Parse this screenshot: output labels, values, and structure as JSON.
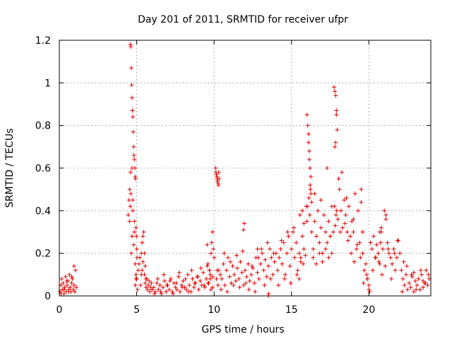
{
  "chart_data": {
    "type": "scatter",
    "title": "Day 201 of 2011, SRMTID for receiver ufpr",
    "xlabel": "GPS time / hours",
    "ylabel": "SRMTID / TECUs",
    "xlim": [
      0,
      24
    ],
    "ylim": [
      0,
      1.2
    ],
    "xticks": [
      0,
      5,
      10,
      15,
      20
    ],
    "xtick_labels": [
      "0",
      "5",
      "10",
      "15",
      "20"
    ],
    "yticks": [
      0,
      0.2,
      0.4,
      0.6,
      0.8,
      1,
      1.2
    ],
    "ytick_labels": [
      "0",
      "0.2",
      "0.4",
      "0.6",
      "0.8",
      "1",
      "1.2"
    ],
    "grid": true,
    "marker": "+",
    "series": [
      {
        "name": "ufpr",
        "color": "#e00000",
        "x": [
          0.05,
          0.1,
          0.15,
          0.2,
          0.25,
          0.3,
          0.35,
          0.4,
          0.45,
          0.5,
          0.55,
          0.6,
          0.65,
          0.7,
          0.75,
          0.8,
          0.85,
          0.9,
          0.95,
          1.0,
          1.05,
          1.1,
          0.12,
          0.3,
          0.48,
          0.62,
          0.8,
          0.95,
          4.45,
          4.5,
          4.55,
          4.6,
          4.65,
          4.7,
          4.75,
          4.8,
          4.85,
          4.9,
          4.95,
          5.0,
          5.05,
          5.1,
          5.15,
          5.2,
          5.25,
          5.3,
          5.35,
          5.4,
          5.45,
          5.5,
          5.55,
          5.6,
          5.65,
          5.7,
          5.75,
          5.8,
          5.85,
          5.9,
          5.95,
          6.0,
          4.6,
          4.62,
          4.65,
          4.68,
          4.7,
          4.72,
          4.75,
          4.78,
          4.8,
          4.82,
          4.85,
          4.88,
          4.9,
          4.92,
          4.95,
          4.98,
          5.0,
          5.02,
          4.55,
          4.58,
          4.62,
          4.7,
          4.75,
          4.85,
          4.9,
          4.95,
          5.3,
          5.35,
          5.4,
          5.5,
          5.55,
          5.6,
          6.1,
          6.2,
          6.3,
          6.4,
          6.5,
          6.6,
          6.7,
          6.8,
          6.9,
          7.0,
          7.1,
          7.2,
          7.3,
          7.4,
          7.5,
          7.6,
          7.7,
          7.8,
          7.9,
          8.0,
          8.1,
          8.2,
          8.3,
          8.4,
          8.5,
          8.6,
          8.7,
          8.8,
          8.9,
          9.0,
          9.1,
          9.2,
          9.3,
          9.4,
          9.5,
          9.6,
          9.7,
          9.8,
          9.9,
          6.15,
          6.35,
          6.55,
          6.75,
          6.95,
          7.15,
          7.35,
          7.55,
          7.75,
          7.95,
          8.15,
          8.35,
          8.55,
          8.75,
          8.95,
          9.15,
          9.35,
          9.55,
          9.75,
          9.6,
          9.7,
          9.8,
          9.85,
          9.9,
          9.95,
          10.0,
          9.65,
          9.75,
          9.9,
          9.55,
          10.1,
          10.12,
          10.15,
          10.18,
          10.2,
          10.22,
          10.25,
          10.28,
          10.3,
          10.32,
          10.15,
          10.2,
          10.25,
          10.4,
          10.5,
          10.6,
          10.7,
          10.8,
          10.9,
          11.0,
          11.1,
          11.2,
          11.3,
          11.4,
          11.5,
          11.6,
          11.7,
          11.8,
          11.9,
          12.0,
          12.1,
          12.2,
          12.3,
          12.4,
          12.5,
          12.6,
          12.7,
          12.8,
          12.9,
          13.0,
          13.1,
          13.2,
          13.3,
          13.4,
          13.5,
          13.6,
          13.7,
          13.8,
          13.9,
          14.0,
          10.45,
          10.65,
          10.85,
          11.05,
          11.25,
          11.45,
          11.65,
          11.85,
          12.05,
          12.25,
          12.45,
          12.65,
          12.85,
          13.05,
          13.25,
          13.45,
          13.65,
          13.85,
          10.3,
          11.9,
          11.95,
          12.8,
          13.5,
          13.52,
          14.1,
          14.2,
          14.3,
          14.4,
          14.5,
          14.6,
          14.7,
          14.8,
          14.9,
          15.0,
          15.1,
          15.2,
          15.3,
          15.4,
          15.5,
          15.6,
          15.7,
          15.8,
          15.9,
          16.0,
          14.15,
          14.35,
          14.55,
          14.75,
          14.95,
          15.15,
          15.35,
          15.55,
          15.75,
          15.95,
          15.5,
          15.6,
          15.7,
          15.8,
          16.0,
          16.05,
          16.1,
          16.15,
          16.2,
          16.25,
          16.1,
          16.15,
          16.2,
          16.25,
          16.05,
          16.12,
          16.18,
          16.22,
          16.3,
          16.3,
          16.4,
          16.5,
          16.6,
          16.7,
          16.8,
          16.9,
          17.0,
          17.1,
          17.2,
          17.3,
          17.4,
          17.5,
          17.6,
          17.7,
          16.4,
          16.6,
          16.8,
          17.0,
          17.2,
          17.4,
          17.6,
          16.5,
          16.9,
          17.3,
          17.75,
          17.8,
          17.85,
          17.9,
          17.95,
          17.8,
          17.85,
          17.9,
          17.78,
          17.88,
          17.82,
          17.92,
          18.0,
          18.1,
          18.2,
          18.3,
          18.4,
          18.5,
          18.6,
          18.7,
          18.8,
          18.9,
          19.0,
          19.1,
          19.2,
          19.3,
          19.4,
          19.5,
          18.05,
          18.25,
          18.45,
          18.65,
          18.85,
          19.05,
          19.25,
          19.45,
          18.15,
          18.55,
          19.0,
          19.5,
          19.6,
          19.6,
          19.7,
          19.8,
          19.9,
          20.0,
          20.1,
          20.2,
          20.3,
          20.4,
          20.5,
          20.6,
          20.7,
          20.8,
          20.9,
          21.0,
          21.1,
          21.2,
          21.3,
          21.4,
          21.5,
          21.6,
          21.7,
          21.8,
          21.9,
          22.0,
          19.65,
          19.85,
          20.05,
          20.25,
          20.45,
          20.65,
          20.85,
          21.05,
          21.25,
          21.45,
          21.65,
          21.85,
          19.9,
          20.0,
          20.7,
          20.75,
          20.8,
          21.1,
          22.1,
          22.2,
          22.3,
          22.4,
          22.5,
          22.6,
          22.7,
          22.8,
          22.9,
          23.0,
          23.1,
          23.2,
          23.3,
          23.4,
          23.5,
          23.6,
          23.7,
          23.8,
          23.9,
          22.15,
          22.45,
          22.75,
          23.05,
          23.35,
          23.65,
          23.85,
          22.25,
          22.9,
          23.5
        ],
        "y": [
          0.02,
          0.05,
          0.08,
          0.03,
          0.06,
          0.01,
          0.04,
          0.09,
          0.02,
          0.05,
          0.07,
          0.03,
          0.1,
          0.04,
          0.02,
          0.06,
          0.08,
          0.03,
          0.05,
          0.02,
          0.12,
          0.04,
          0.01,
          0.03,
          0.07,
          0.02,
          0.09,
          0.14,
          0.38,
          0.45,
          0.5,
          0.58,
          0.2,
          0.28,
          0.4,
          0.24,
          0.3,
          0.05,
          0.1,
          0.08,
          0.03,
          0.12,
          0.15,
          0.18,
          0.05,
          0.2,
          0.25,
          0.28,
          0.3,
          0.1,
          0.06,
          0.04,
          0.08,
          0.03,
          0.05,
          0.07,
          0.02,
          0.04,
          0.06,
          0.03,
          1.18,
          1.17,
          1.07,
          0.99,
          0.93,
          0.87,
          0.84,
          0.77,
          0.7,
          0.66,
          0.64,
          0.6,
          0.56,
          0.55,
          0.32,
          0.28,
          0.22,
          0.18,
          0.35,
          0.42,
          0.48,
          0.6,
          0.45,
          0.35,
          0.15,
          0.08,
          0.1,
          0.12,
          0.16,
          0.2,
          0.14,
          0.08,
          0.04,
          0.02,
          0.06,
          0.03,
          0.05,
          0.01,
          0.04,
          0.07,
          0.02,
          0.05,
          0.03,
          0.08,
          0.02,
          0.06,
          0.04,
          0.03,
          0.09,
          0.02,
          0.05,
          0.07,
          0.04,
          0.03,
          0.1,
          0.05,
          0.02,
          0.08,
          0.04,
          0.06,
          0.09,
          0.03,
          0.07,
          0.05,
          0.11,
          0.04,
          0.08,
          0.06,
          0.12,
          0.03,
          0.09,
          0.01,
          0.08,
          0.02,
          0.1,
          0.05,
          0.07,
          0.01,
          0.06,
          0.11,
          0.04,
          0.08,
          0.02,
          0.12,
          0.06,
          0.09,
          0.13,
          0.05,
          0.14,
          0.08,
          0.15,
          0.12,
          0.2,
          0.25,
          0.3,
          0.22,
          0.18,
          0.06,
          0.1,
          0.04,
          0.24,
          0.6,
          0.58,
          0.57,
          0.56,
          0.55,
          0.54,
          0.53,
          0.52,
          0.58,
          0.55,
          0.08,
          0.12,
          0.05,
          0.1,
          0.08,
          0.15,
          0.05,
          0.12,
          0.18,
          0.09,
          0.06,
          0.14,
          0.1,
          0.07,
          0.13,
          0.08,
          0.16,
          0.11,
          0.05,
          0.12,
          0.09,
          0.15,
          0.07,
          0.1,
          0.13,
          0.06,
          0.18,
          0.11,
          0.08,
          0.15,
          0.2,
          0.12,
          0.17,
          0.09,
          0.14,
          0.22,
          0.18,
          0.1,
          0.16,
          0.2,
          0.03,
          0.2,
          0.02,
          0.16,
          0.05,
          0.19,
          0.04,
          0.21,
          0.06,
          0.03,
          0.14,
          0.02,
          0.18,
          0.22,
          0.05,
          0.25,
          0.08,
          0.2,
          0.12,
          0.31,
          0.34,
          0.22,
          0.0,
          0.01,
          0.12,
          0.18,
          0.22,
          0.15,
          0.25,
          0.1,
          0.2,
          0.28,
          0.14,
          0.22,
          0.3,
          0.18,
          0.25,
          0.12,
          0.2,
          0.16,
          0.28,
          0.22,
          0.19,
          0.35,
          0.05,
          0.26,
          0.08,
          0.3,
          0.06,
          0.32,
          0.1,
          0.38,
          0.15,
          0.42,
          0.08,
          0.18,
          0.4,
          0.34,
          0.85,
          0.8,
          0.72,
          0.68,
          0.6,
          0.56,
          0.76,
          0.64,
          0.52,
          0.48,
          0.42,
          0.46,
          0.38,
          0.5,
          0.44,
          0.3,
          0.22,
          0.35,
          0.28,
          0.4,
          0.25,
          0.32,
          0.2,
          0.38,
          0.3,
          0.25,
          0.35,
          0.28,
          0.42,
          0.3,
          0.18,
          0.15,
          0.2,
          0.16,
          0.22,
          0.18,
          0.2,
          0.48,
          0.45,
          0.6,
          0.98,
          0.96,
          0.94,
          0.87,
          0.78,
          0.7,
          0.72,
          0.85,
          0.42,
          0.38,
          0.33,
          0.4,
          0.36,
          0.5,
          0.4,
          0.32,
          0.45,
          0.38,
          0.3,
          0.42,
          0.28,
          0.35,
          0.3,
          0.48,
          0.22,
          0.4,
          0.25,
          0.5,
          0.55,
          0.58,
          0.34,
          0.26,
          0.2,
          0.16,
          0.24,
          0.18,
          0.3,
          0.46,
          0.36,
          0.44,
          0.3,
          0.2,
          0.12,
          0.15,
          0.08,
          0.03,
          0.25,
          0.22,
          0.28,
          0.18,
          0.24,
          0.2,
          0.15,
          0.3,
          0.22,
          0.4,
          0.38,
          0.25,
          0.2,
          0.18,
          0.15,
          0.22,
          0.12,
          0.18,
          0.26,
          0.2,
          0.06,
          0.1,
          0.02,
          0.12,
          0.18,
          0.16,
          0.1,
          0.14,
          0.22,
          0.08,
          0.2,
          0.26,
          0.08,
          0.05,
          0.3,
          0.25,
          0.32,
          0.36,
          0.12,
          0.08,
          0.05,
          0.1,
          0.03,
          0.06,
          0.04,
          0.09,
          0.02,
          0.07,
          0.05,
          0.08,
          0.03,
          0.1,
          0.04,
          0.06,
          0.12,
          0.05,
          0.08,
          0.02,
          0.14,
          0.1,
          0.03,
          0.12,
          0.06,
          0.1,
          0.16,
          0.11,
          0.07
        ]
      }
    ]
  }
}
